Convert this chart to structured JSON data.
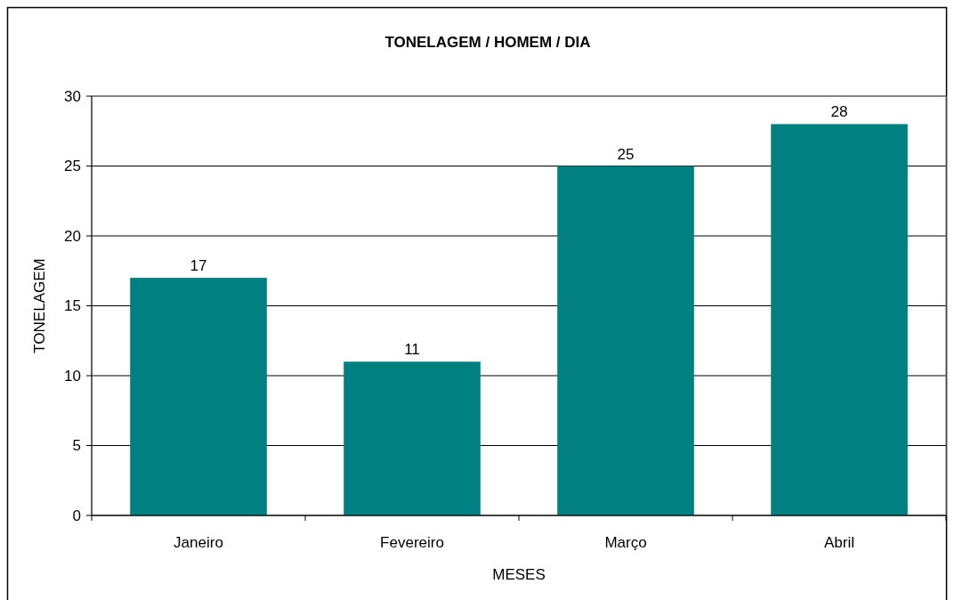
{
  "chart_data": {
    "type": "bar",
    "title": "TONELAGEM / HOMEM / DIA",
    "xlabel": "MESES",
    "ylabel": "TONELAGEM",
    "categories": [
      "Janeiro",
      "Fevereiro",
      "Março",
      "Abril"
    ],
    "values": [
      17,
      11,
      25,
      28
    ],
    "color": "#008080",
    "ylim": [
      0,
      30
    ],
    "yticks": [
      0,
      5,
      10,
      15,
      20,
      25,
      30
    ],
    "grid": "y",
    "data_labels": true
  }
}
